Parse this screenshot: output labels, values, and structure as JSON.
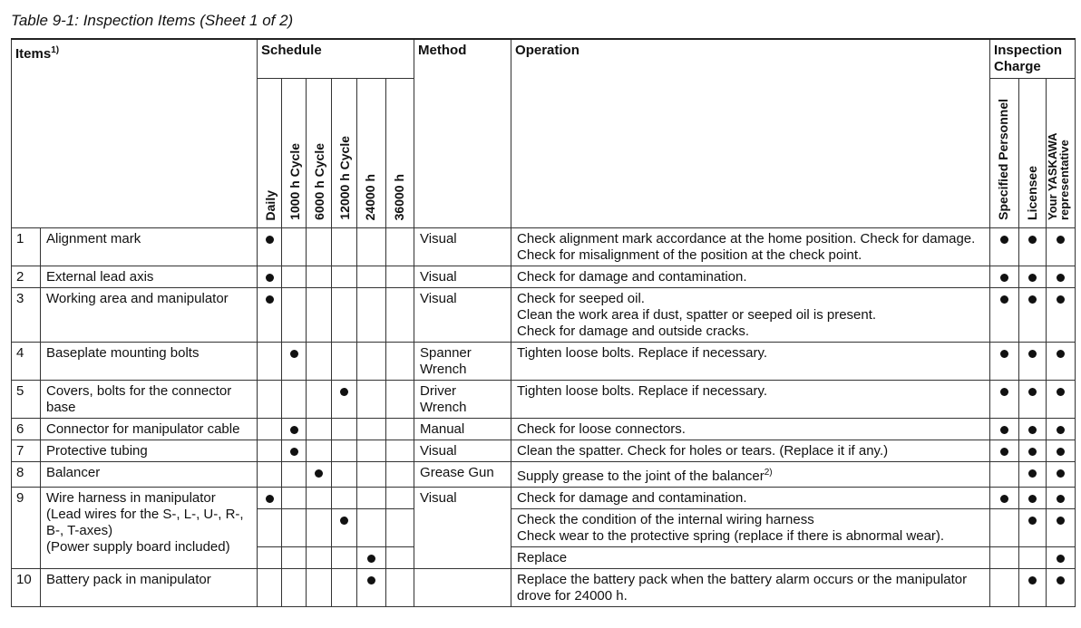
{
  "caption": "Table 9-1: Inspection Items  (Sheet 1 of 2)",
  "headers": {
    "items": "Items",
    "items_sup": "1)",
    "schedule": "Schedule",
    "method": "Method",
    "operation": "Operation",
    "inspection_charge": "Inspection Charge",
    "schedule_cols": [
      "Daily",
      "1000 h Cycle",
      "6000 h Cycle",
      "12000 h Cycle",
      "24000 h",
      "36000 h"
    ],
    "charge_cols": [
      "Specified Personnel",
      "Licensee",
      "Your YASKAWA representative"
    ]
  },
  "rows": [
    {
      "no": "1",
      "item": "Alignment mark",
      "method": "Visual",
      "operation": "Check alignment mark accordance at the home position.  Check for damage.\nCheck for misalignment of the position at the check point.",
      "schedule": [
        1,
        0,
        0,
        0,
        0,
        0
      ],
      "charge": [
        1,
        1,
        1
      ]
    },
    {
      "no": "2",
      "item": "External lead axis",
      "method": "Visual",
      "operation": "Check for damage and contamination.",
      "schedule": [
        1,
        0,
        0,
        0,
        0,
        0
      ],
      "charge": [
        1,
        1,
        1
      ]
    },
    {
      "no": "3",
      "item": "Working area and manipulator",
      "method": "Visual",
      "operation": "Check for seeped oil.\nClean the work area if dust, spatter or seeped oil is present.\nCheck for damage and outside cracks.",
      "schedule": [
        1,
        0,
        0,
        0,
        0,
        0
      ],
      "charge": [
        1,
        1,
        1
      ]
    },
    {
      "no": "4",
      "item": "Baseplate mounting bolts",
      "method": "Spanner\nWrench",
      "operation": "Tighten loose bolts.  Replace if necessary.",
      "schedule": [
        0,
        1,
        0,
        0,
        0,
        0
      ],
      "charge": [
        1,
        1,
        1
      ]
    },
    {
      "no": "5",
      "item": "Covers, bolts for the connector base",
      "method": "Driver\nWrench",
      "operation": "Tighten loose bolts.  Replace if necessary.",
      "schedule": [
        0,
        0,
        0,
        1,
        0,
        0
      ],
      "charge": [
        1,
        1,
        1
      ]
    },
    {
      "no": "6",
      "item": "Connector for manipulator cable",
      "method": "Manual",
      "operation": "Check for loose connectors.",
      "schedule": [
        0,
        1,
        0,
        0,
        0,
        0
      ],
      "charge": [
        1,
        1,
        1
      ]
    },
    {
      "no": "7",
      "item": "Protective tubing",
      "method": "Visual",
      "operation": "Clean the spatter.  Check for holes or tears.  (Replace it if any.)",
      "schedule": [
        0,
        1,
        0,
        0,
        0,
        0
      ],
      "charge": [
        1,
        1,
        1
      ]
    },
    {
      "no": "8",
      "item": "Balancer",
      "method": "Grease Gun",
      "operation": "Supply grease to the joint of the balancer",
      "operation_sup": "2)",
      "schedule": [
        0,
        0,
        1,
        0,
        0,
        0
      ],
      "charge": [
        0,
        1,
        1
      ]
    }
  ],
  "row9": {
    "no": "9",
    "item": "Wire harness in manipulator\n(Lead wires for the S-, L-, U-, R-, B-, T-axes)\n(Power supply board included)",
    "method": "Visual",
    "subrows": [
      {
        "operation": "Check for damage and contamination.",
        "schedule": [
          1,
          0,
          0,
          0,
          0,
          0
        ],
        "charge": [
          1,
          1,
          1
        ]
      },
      {
        "operation": "Check the condition of the internal wiring harness\nCheck wear to the protective spring (replace if there is abnormal wear).",
        "schedule": [
          0,
          0,
          0,
          1,
          0,
          0
        ],
        "charge": [
          0,
          1,
          1
        ]
      },
      {
        "operation": "Replace",
        "schedule": [
          0,
          0,
          0,
          0,
          1,
          0
        ],
        "charge": [
          0,
          0,
          1
        ]
      }
    ]
  },
  "row10": {
    "no": "10",
    "item": "Battery pack in manipulator",
    "method": "",
    "operation": "Replace the battery pack when the battery alarm occurs or the manipulator drove for 24000 h.",
    "schedule": [
      0,
      0,
      0,
      0,
      1,
      0
    ],
    "charge": [
      0,
      1,
      1
    ]
  }
}
